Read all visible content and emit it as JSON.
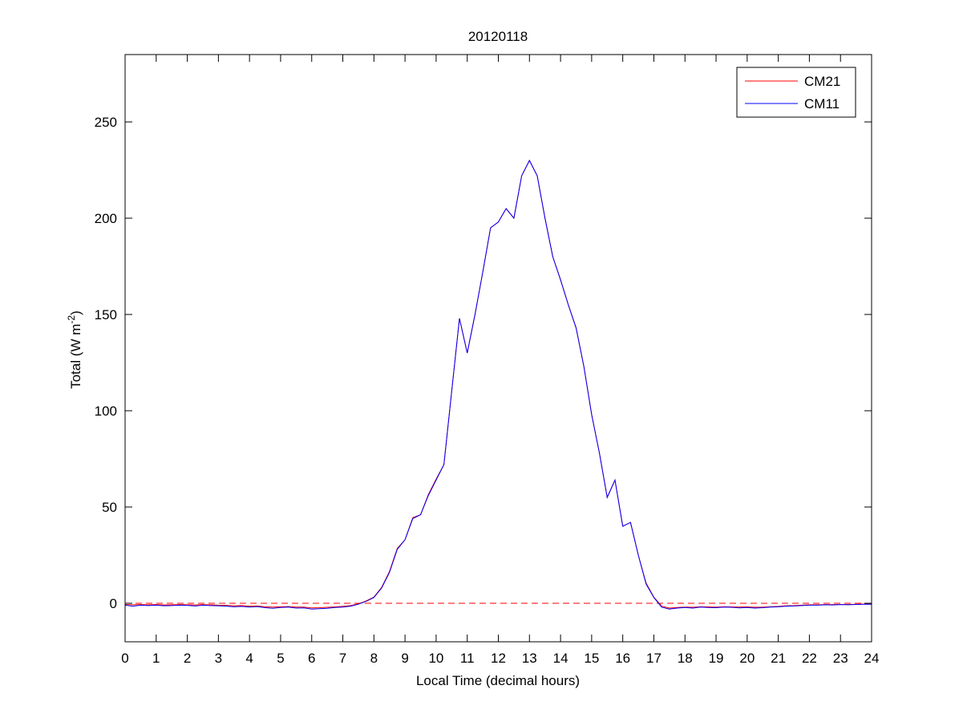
{
  "chart_data": {
    "type": "line",
    "title": "20120118",
    "xlabel": "Local Time (decimal hours)",
    "ylabel": {
      "text": "Total (W m",
      "superscript": "-2",
      "suffix": ")"
    },
    "x": [
      0,
      0.25,
      0.5,
      0.75,
      1,
      1.25,
      1.5,
      1.75,
      2,
      2.25,
      2.5,
      2.75,
      3,
      3.25,
      3.5,
      3.75,
      4,
      4.25,
      4.5,
      4.75,
      5,
      5.25,
      5.5,
      5.75,
      6,
      6.25,
      6.5,
      6.75,
      7,
      7.25,
      7.5,
      7.75,
      8,
      8.25,
      8.5,
      8.75,
      9,
      9.25,
      9.5,
      9.75,
      10,
      10.25,
      10.5,
      10.75,
      11,
      11.25,
      11.5,
      11.75,
      12,
      12.25,
      12.5,
      12.75,
      13,
      13.25,
      13.5,
      13.75,
      14,
      14.25,
      14.5,
      14.75,
      15,
      15.25,
      15.5,
      15.75,
      16,
      16.25,
      16.5,
      16.75,
      17,
      17.25,
      17.5,
      17.75,
      18,
      18.25,
      18.5,
      18.75,
      19,
      19.25,
      19.5,
      19.75,
      20,
      20.25,
      20.5,
      20.75,
      21,
      21.25,
      21.5,
      21.75,
      22,
      22.25,
      22.5,
      22.75,
      23,
      23.25,
      23.5,
      23.75,
      24
    ],
    "series": [
      {
        "name": "CM21",
        "color": "#ff0000",
        "values": [
          -0.6,
          -0.8,
          -0.7,
          -0.8,
          -0.7,
          -0.9,
          -0.8,
          -0.7,
          -0.8,
          -0.9,
          -0.7,
          -0.8,
          -1,
          -1.1,
          -1.3,
          -1.2,
          -1.5,
          -1.4,
          -1.8,
          -2,
          -1.8,
          -1.7,
          -2,
          -2,
          -2.4,
          -2.3,
          -2.1,
          -1.9,
          -1.6,
          -1.2,
          -0.3,
          1.2,
          3.2,
          8.3,
          16.5,
          28.5,
          33,
          44.5,
          46,
          56.5,
          64.5,
          72,
          110,
          148,
          130,
          150,
          172,
          195,
          198,
          205,
          200,
          222,
          230,
          222,
          200,
          180,
          168,
          155,
          143,
          123,
          98,
          78,
          55,
          64,
          40,
          42,
          25,
          10.5,
          3.2,
          -1.5,
          -2.5,
          -2.2,
          -2,
          -2.1,
          -1.8,
          -1.9,
          -2,
          -1.8,
          -1.9,
          -2,
          -1.9,
          -2.1,
          -2,
          -1.8,
          -1.6,
          -1.3,
          -1.2,
          -1,
          -0.8,
          -0.8,
          -0.7,
          -0.7,
          -0.6,
          -0.6,
          -0.5,
          -0.4,
          -0.4
        ]
      },
      {
        "name": "CM11",
        "color": "#0000ff",
        "values": [
          -1,
          -1.5,
          -1,
          -1.2,
          -1,
          -1.3,
          -1.2,
          -1,
          -1.1,
          -1.4,
          -1,
          -1.2,
          -1.3,
          -1.5,
          -1.8,
          -1.6,
          -2,
          -1.7,
          -2.3,
          -2.6,
          -2.2,
          -2,
          -2.5,
          -2.4,
          -3,
          -2.8,
          -2.6,
          -2.2,
          -2,
          -1.5,
          -0.5,
          1,
          3,
          8,
          16,
          28,
          33,
          44,
          46,
          56,
          64,
          72,
          110,
          148,
          130,
          150,
          172,
          195,
          198,
          205,
          200,
          222,
          230,
          222,
          200,
          180,
          168,
          155,
          143,
          123,
          98,
          78,
          55,
          64,
          40,
          42,
          25,
          10,
          3,
          -2,
          -3,
          -2.5,
          -2.2,
          -2.5,
          -2,
          -2.2,
          -2.3,
          -2,
          -2.1,
          -2.4,
          -2.2,
          -2.5,
          -2.3,
          -2,
          -1.8,
          -1.5,
          -1.4,
          -1.2,
          -1,
          -1,
          -0.8,
          -0.9,
          -0.7,
          -0.8,
          -0.6,
          -0.5,
          -0.5
        ]
      }
    ],
    "reference_line": {
      "value": 0,
      "color": "#ff0000",
      "style": "dashed"
    },
    "xlim": [
      0,
      24
    ],
    "xticks": [
      0,
      1,
      2,
      3,
      4,
      5,
      6,
      7,
      8,
      9,
      10,
      11,
      12,
      13,
      14,
      15,
      16,
      17,
      18,
      19,
      20,
      21,
      22,
      23,
      24
    ],
    "ylim": [
      -20,
      285
    ],
    "yticks": [
      0,
      50,
      100,
      150,
      200,
      250
    ],
    "grid": false,
    "legend": "upper-right"
  }
}
